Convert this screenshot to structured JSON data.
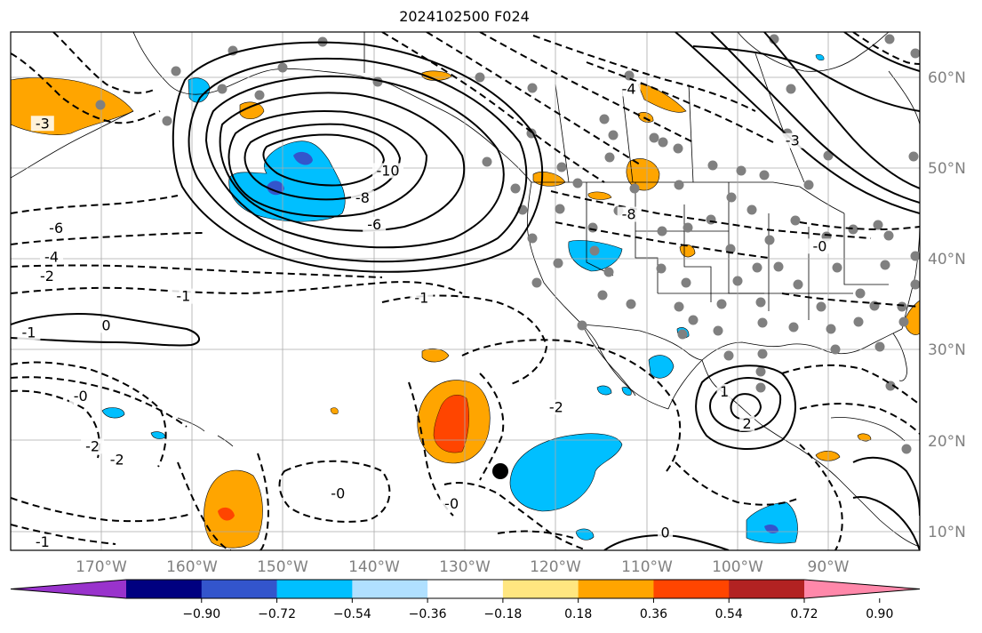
{
  "title": "2024102500 F024",
  "map": {
    "projection": "PlateCarree",
    "lon_range": [
      -180,
      -80
    ],
    "lat_range": [
      8,
      65
    ],
    "gridlines": true,
    "lat_ticks": [
      {
        "value": 10,
        "label": "10°N"
      },
      {
        "value": 20,
        "label": "20°N"
      },
      {
        "value": 30,
        "label": "30°N"
      },
      {
        "value": 40,
        "label": "40°N"
      },
      {
        "value": 50,
        "label": "50°N"
      },
      {
        "value": 60,
        "label": "60°N"
      }
    ],
    "lon_ticks": [
      {
        "value": -170,
        "label": "170°W"
      },
      {
        "value": -160,
        "label": "160°W"
      },
      {
        "value": -150,
        "label": "150°W"
      },
      {
        "value": -140,
        "label": "140°W"
      },
      {
        "value": -130,
        "label": "130°W"
      },
      {
        "value": -120,
        "label": "120°W"
      },
      {
        "value": -110,
        "label": "110°W"
      },
      {
        "value": -100,
        "label": "100°W"
      },
      {
        "value": -90,
        "label": "90°W"
      }
    ],
    "contour_labels": [
      {
        "text": "-10",
        "lon": -138.5,
        "lat": 49.8
      },
      {
        "text": "-8",
        "lon": -141.3,
        "lat": 46.8
      },
      {
        "text": "-6",
        "lon": -140.0,
        "lat": 43.9
      },
      {
        "text": "-4",
        "lon": -112.0,
        "lat": 58.8
      },
      {
        "text": "-3",
        "lon": -176.5,
        "lat": 55.0
      },
      {
        "text": "-3",
        "lon": -94.0,
        "lat": 53.1
      },
      {
        "text": "-8",
        "lon": -112.0,
        "lat": 45.0
      },
      {
        "text": "-6",
        "lon": -175.0,
        "lat": 43.5
      },
      {
        "text": "-4",
        "lon": -175.5,
        "lat": 40.3
      },
      {
        "text": "-2",
        "lon": -176.0,
        "lat": 38.2
      },
      {
        "text": "-1",
        "lon": -161.0,
        "lat": 36.0
      },
      {
        "text": "-1",
        "lon": -134.8,
        "lat": 35.8
      },
      {
        "text": "0",
        "lon": -169.5,
        "lat": 32.8
      },
      {
        "text": "-1",
        "lon": -178.0,
        "lat": 32.0
      },
      {
        "text": "-0",
        "lon": -172.3,
        "lat": 25.0
      },
      {
        "text": "-2",
        "lon": -171.0,
        "lat": 19.5
      },
      {
        "text": "-2",
        "lon": -168.3,
        "lat": 18.0
      },
      {
        "text": "-2",
        "lon": -120.0,
        "lat": 23.8
      },
      {
        "text": "-0",
        "lon": -144.0,
        "lat": 14.3
      },
      {
        "text": "-0",
        "lon": -131.5,
        "lat": 13.2
      },
      {
        "text": "-1",
        "lon": -176.5,
        "lat": 9.0
      },
      {
        "text": "0",
        "lon": -108.0,
        "lat": 10.0
      },
      {
        "text": "1",
        "lon": -101.5,
        "lat": 25.5
      },
      {
        "text": "2",
        "lon": -99.0,
        "lat": 22.0
      },
      {
        "text": "-0",
        "lon": -91.0,
        "lat": 41.5
      }
    ]
  },
  "colorbar": {
    "ticks": [
      "−0.90",
      "−0.72",
      "−0.54",
      "−0.36",
      "−0.18",
      "0.18",
      "0.36",
      "0.54",
      "0.72",
      "0.90"
    ],
    "colors": [
      "#9933cc",
      "#000080",
      "#3355cc",
      "#00bfff",
      "#b0e0ff",
      "#ffffff",
      "#ffe680",
      "#ffa500",
      "#ff4500",
      "#b22222",
      "#ff88aa"
    ]
  }
}
